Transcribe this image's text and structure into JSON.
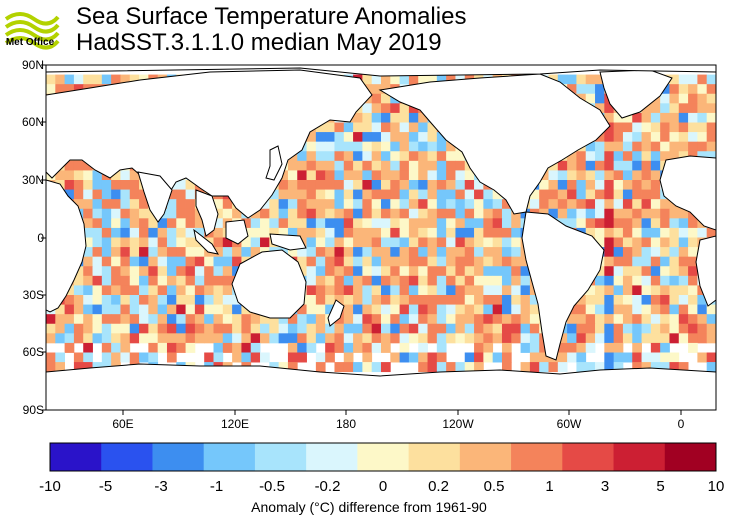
{
  "header": {
    "logo_text": "Met Office",
    "title": "Sea Surface Temperature Anomalies",
    "subtitle": "HadSST.3.1.1.0 median May 2019"
  },
  "map": {
    "lat_labels": [
      "90N",
      "60N",
      "30N",
      "0",
      "30S",
      "60S",
      "90S"
    ],
    "lon_labels": [
      "60E",
      "120E",
      "180",
      "120W",
      "60W",
      "0"
    ]
  },
  "colorbar": {
    "labels": [
      "-10",
      "-5",
      "-3",
      "-1",
      "-0.5",
      "-0.2",
      "0",
      "0.2",
      "0.5",
      "1",
      "3",
      "5",
      "10"
    ],
    "colors": [
      "#2a13c9",
      "#2a52ef",
      "#3d8ef0",
      "#75c7fb",
      "#a8e4fc",
      "#daf6fd",
      "#fdf8c8",
      "#fde09e",
      "#fbb679",
      "#f4835b",
      "#e54a46",
      "#cc1f33",
      "#a10022"
    ],
    "title": "Anomaly (°C) difference from 1961-90"
  }
}
